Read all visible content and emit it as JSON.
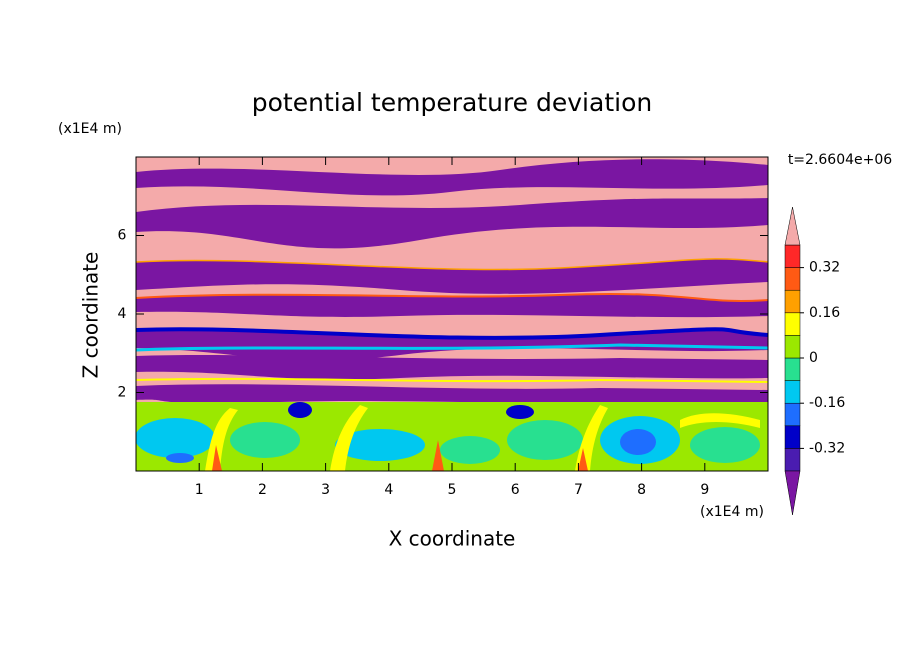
{
  "chart_data": {
    "type": "contour",
    "title": "potential temperature deviation",
    "xlabel": "X coordinate",
    "ylabel": "Z coordinate",
    "xunit": "(x1E4 m)",
    "yunit": "(x1E4 m)",
    "annotation": "t=2.6604e+06",
    "xlim": [
      0,
      10
    ],
    "xticks": [
      1,
      2,
      3,
      4,
      5,
      6,
      7,
      8,
      9
    ],
    "ylim": [
      0,
      8
    ],
    "yticks": [
      2,
      4,
      6
    ],
    "colorbar": {
      "boundaries": [
        -0.4,
        -0.32,
        -0.24,
        -0.16,
        -0.08,
        0,
        0.08,
        0.16,
        0.24,
        0.32,
        0.4
      ],
      "colors": [
        "#7a16a2",
        "#4a1cb0",
        "#0000c8",
        "#1e6eff",
        "#00c8f0",
        "#28e090",
        "#9be800",
        "#ffff00",
        "#ffa000",
        "#ff5a14",
        "#ff2828",
        "#f4aaaa"
      ],
      "ticks": [
        -0.32,
        -0.16,
        0,
        0.16,
        0.32
      ]
    }
  }
}
